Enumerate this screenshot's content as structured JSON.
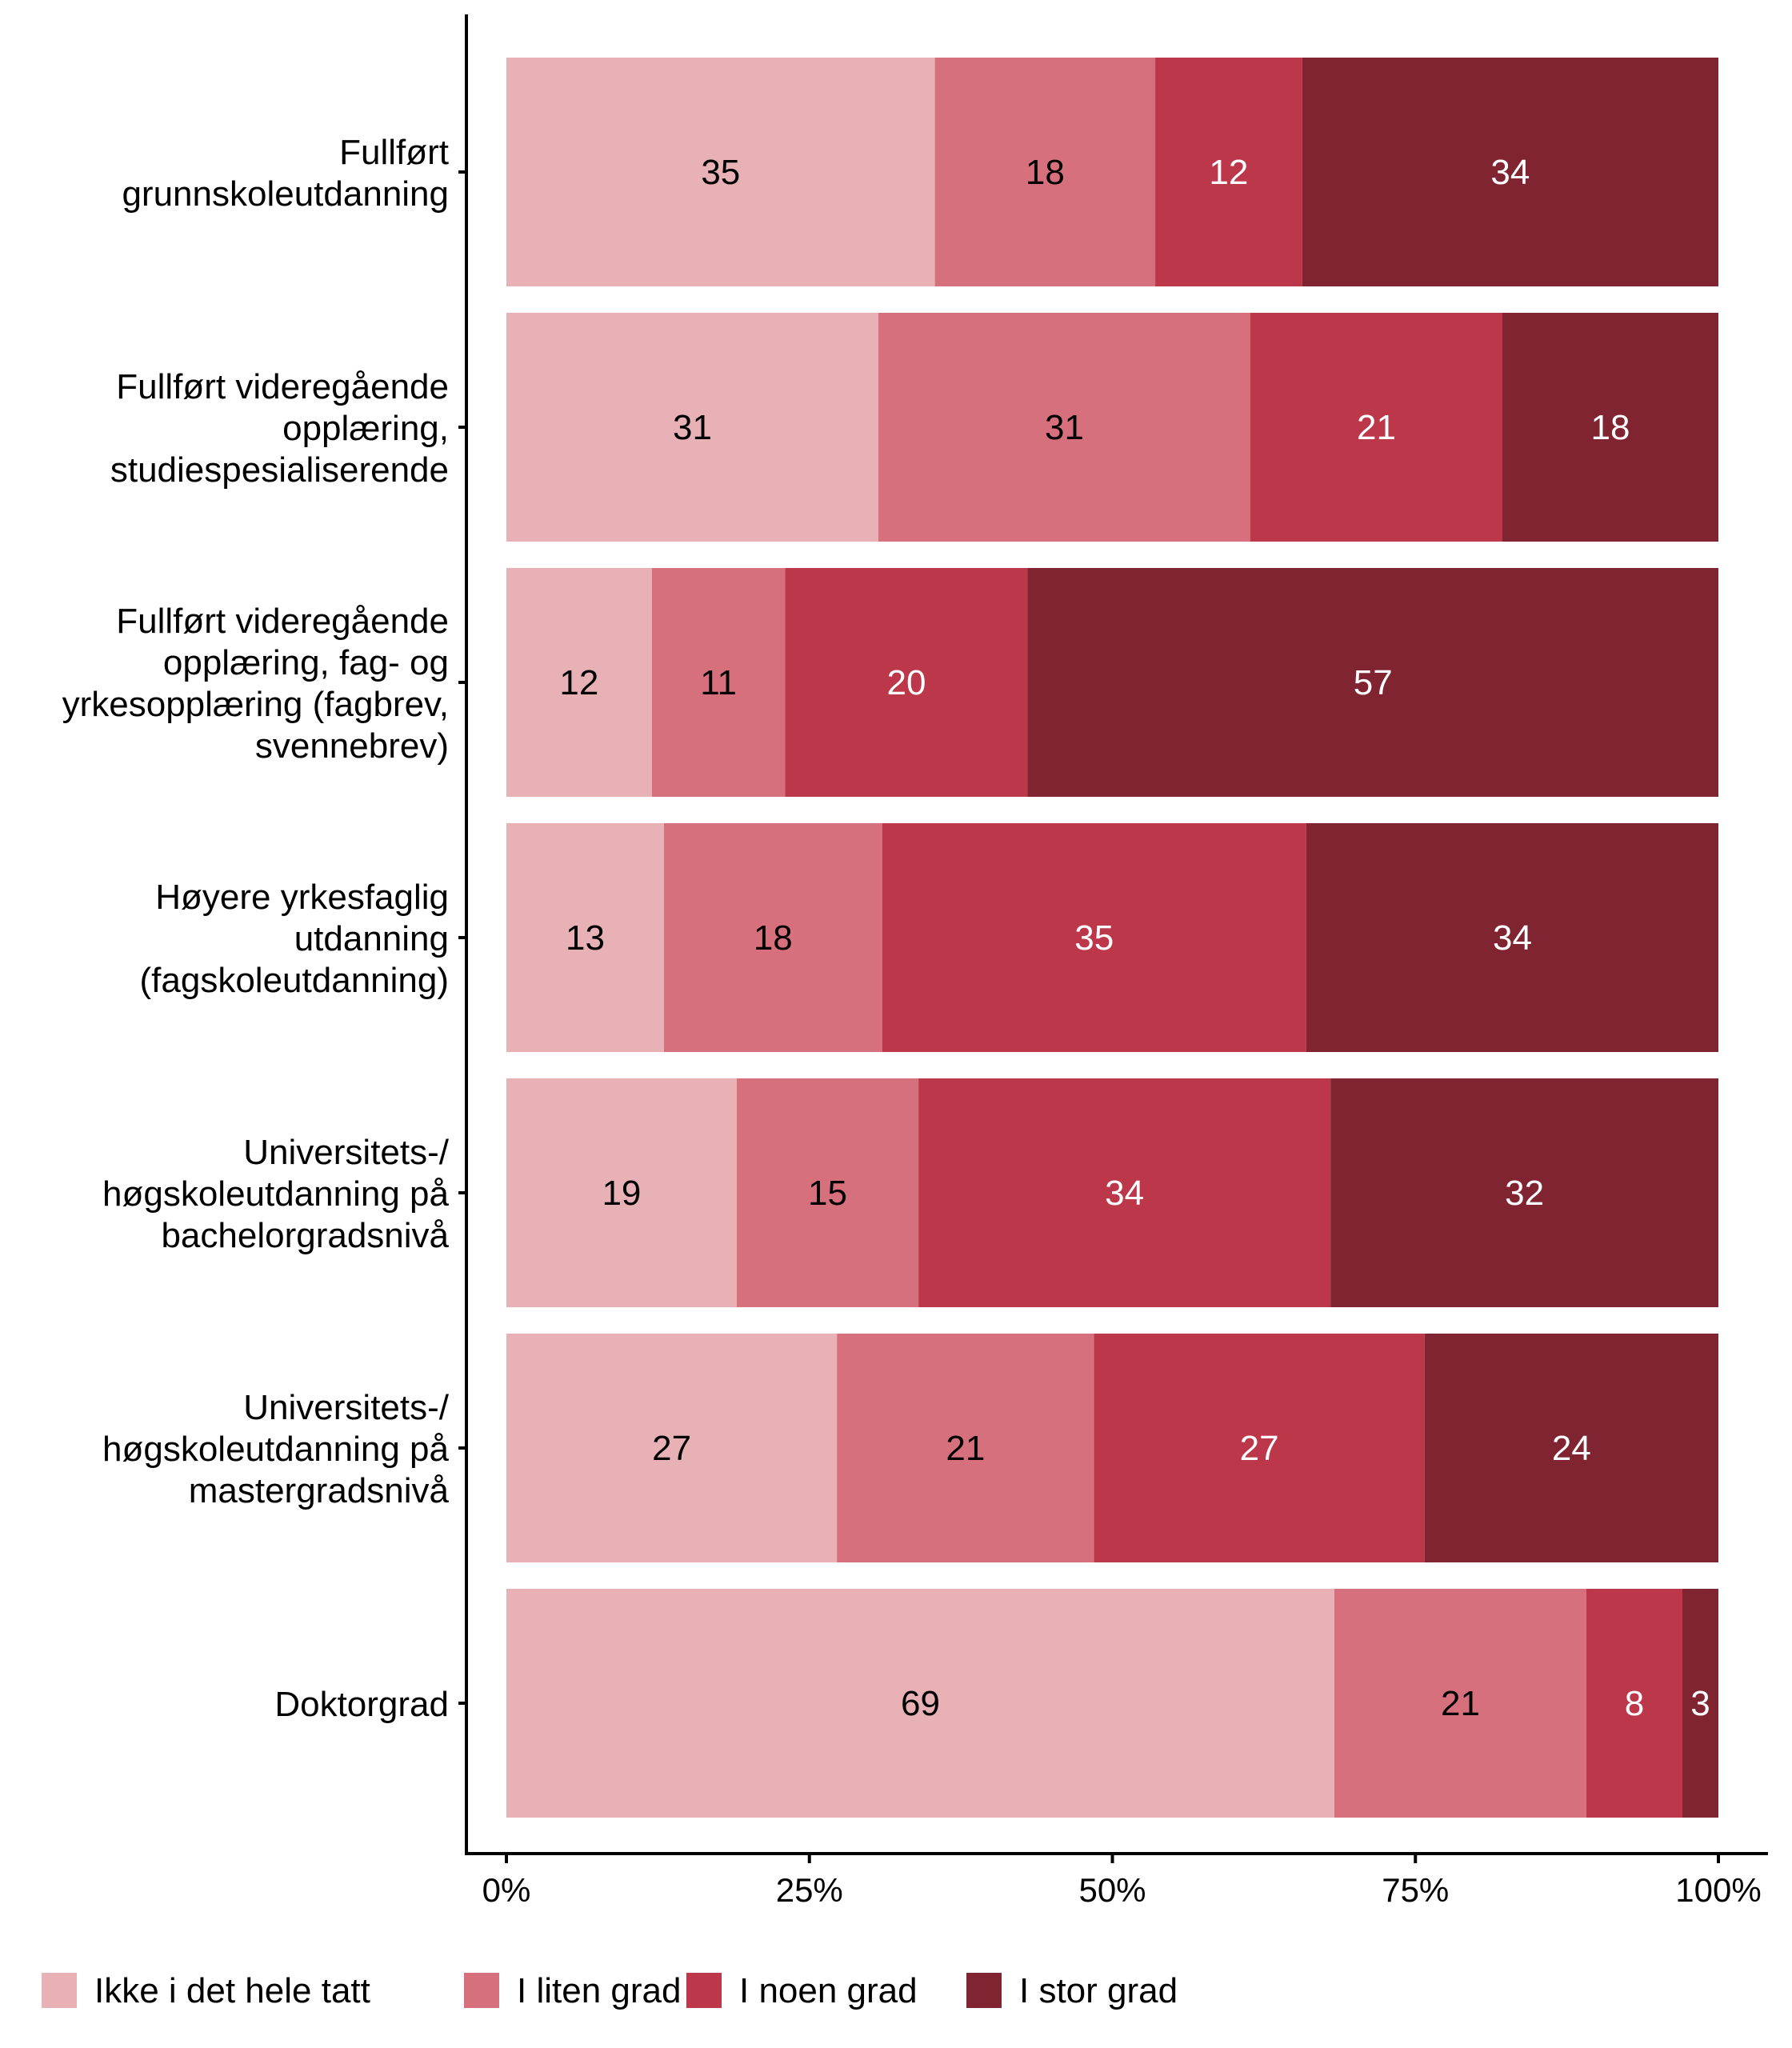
{
  "chart_data": {
    "type": "bar",
    "orientation": "horizontal",
    "stacked": "percent",
    "categories": [
      [
        "Fullført",
        "grunnskoleutdanning"
      ],
      [
        "Fullført videregående",
        "opplæring,",
        "studiespesialiserende"
      ],
      [
        "Fullført videregående",
        "opplæring, fag- og",
        "yrkesopplæring (fagbrev,",
        "svennebrev)"
      ],
      [
        "Høyere yrkesfaglig",
        "utdanning",
        "(fagskoleutdanning)"
      ],
      [
        "Universitets-/",
        "høgskoleutdanning på",
        "bachelorgradsnivå"
      ],
      [
        "Universitets-/",
        "høgskoleutdanning på",
        "mastergradsnivå"
      ],
      [
        "Doktorgrad"
      ]
    ],
    "series": [
      {
        "name": "Ikke i det hele tatt",
        "color": "#E8B1B6",
        "label_color": "#000000",
        "values": [
          35,
          31,
          12,
          13,
          19,
          27,
          69
        ]
      },
      {
        "name": "I liten grad",
        "color": "#D6707C",
        "label_color": "#000000",
        "values": [
          18,
          31,
          11,
          18,
          15,
          21,
          21
        ]
      },
      {
        "name": "I noen grad",
        "color": "#BD374A",
        "label_color": "#ffffff",
        "values": [
          12,
          21,
          20,
          35,
          34,
          27,
          8
        ]
      },
      {
        "name": "I stor grad",
        "color": "#7F2430",
        "label_color": "#ffffff",
        "values": [
          34,
          18,
          57,
          34,
          32,
          24,
          3
        ]
      }
    ],
    "xlim": [
      0,
      100
    ],
    "x_ticks": [
      0,
      25,
      50,
      75,
      100
    ],
    "x_tick_labels": [
      "0%",
      "25%",
      "50%",
      "75%",
      "100%"
    ],
    "legend_position": "bottom",
    "grid": false
  }
}
